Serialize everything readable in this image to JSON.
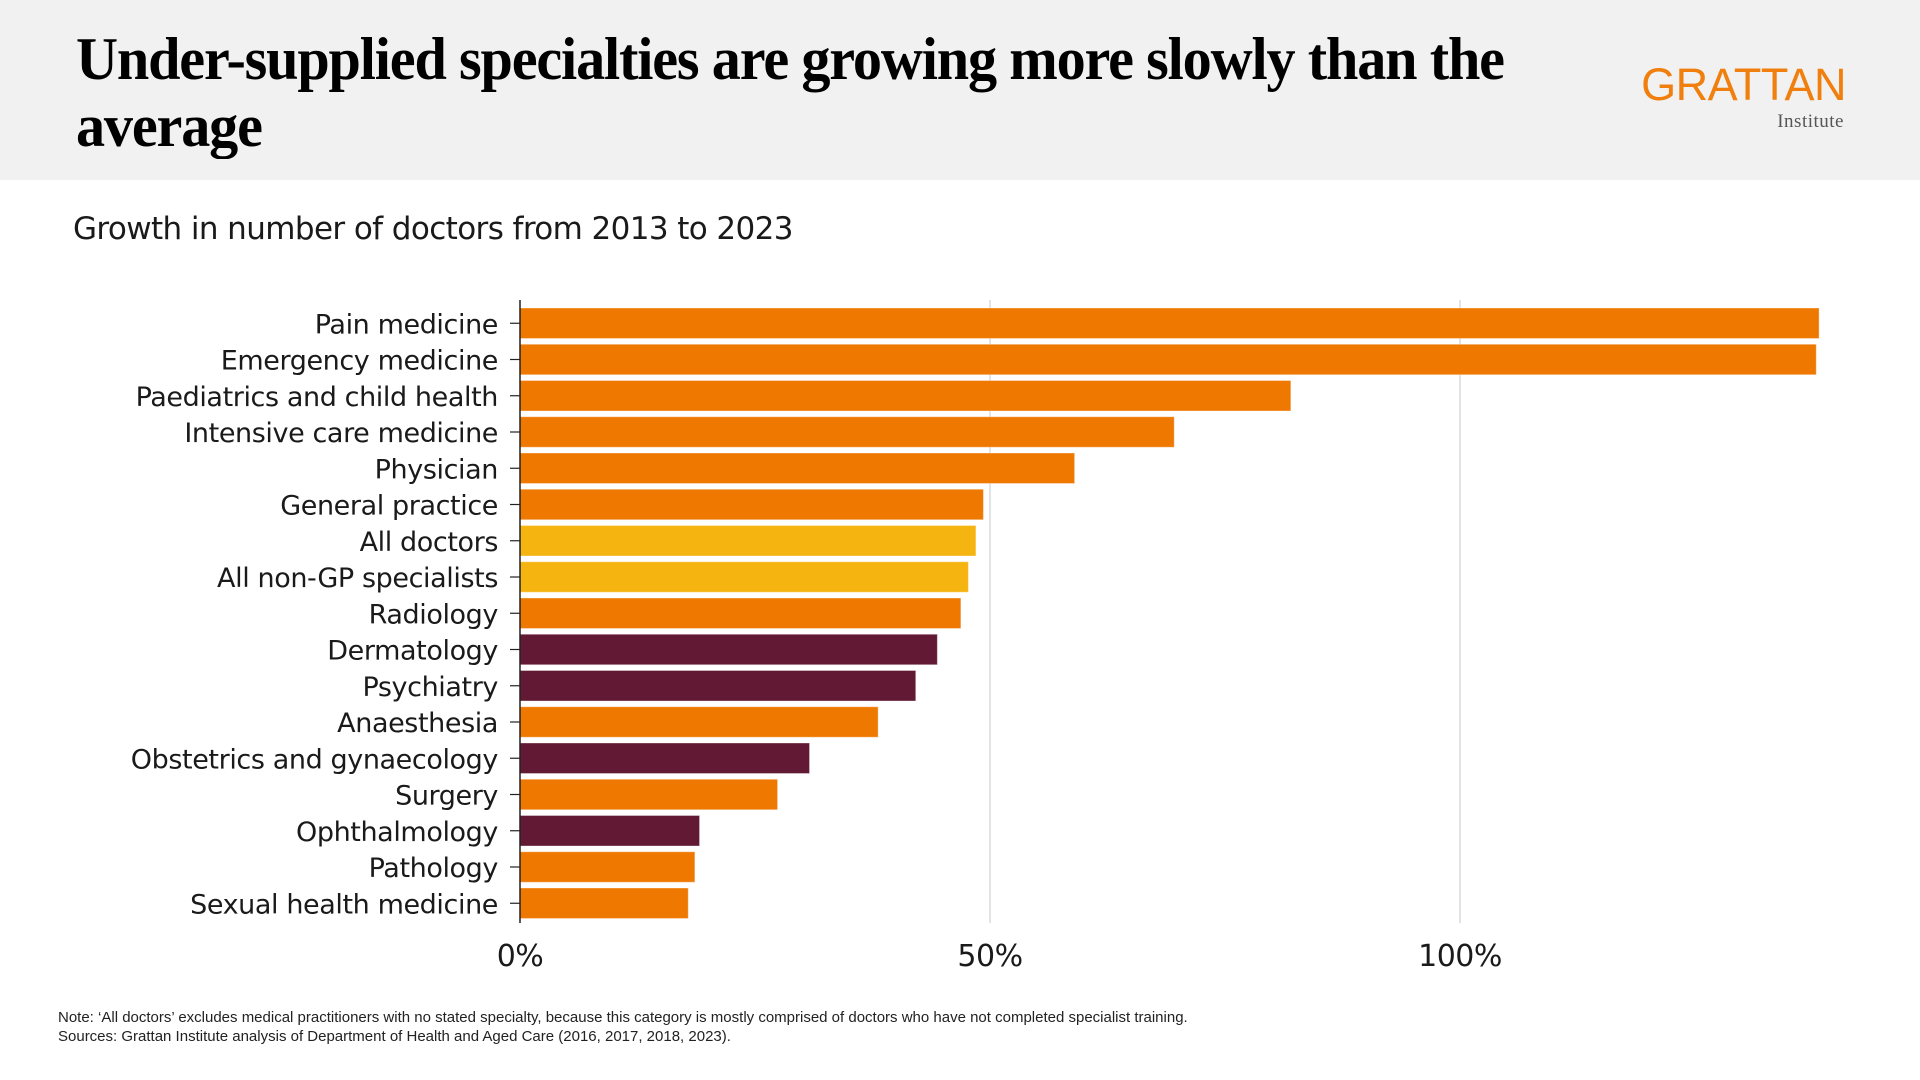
{
  "header": {
    "title": "Under-supplied specialties are growing more slowly than the average",
    "logo_main": "GRATTAN",
    "logo_sub": "Institute"
  },
  "subtitle": "Growth in number of doctors from 2013 to 2023",
  "colors": {
    "orange": "#ee7800",
    "yellow": "#f5b40f",
    "maroon": "#621934",
    "header_bg": "#f1f1f1",
    "logo": "#f07f0d",
    "grid": "#d4d4d4",
    "axis": "#222222"
  },
  "chart_data": {
    "type": "bar",
    "orientation": "horizontal",
    "title": "Growth in number of doctors from 2013 to 2023",
    "xlabel": "",
    "ylabel": "",
    "xlim": [
      0,
      1.38
    ],
    "x_ticks": [
      0,
      0.5,
      1.0
    ],
    "x_tick_labels": [
      "0%",
      "50%",
      "100%"
    ],
    "grid": "vertical",
    "legend": "none",
    "categories": [
      "Pain medicine",
      "Emergency medicine",
      "Paediatrics and child health",
      "Intensive care medicine",
      "Physician",
      "General practice",
      "All doctors",
      "All non-GP specialists",
      "Radiology",
      "Dermatology",
      "Psychiatry",
      "Anaesthesia",
      "Obstetrics and gynaecology",
      "Surgery",
      "Ophthalmology",
      "Pathology",
      "Sexual health medicine"
    ],
    "values": [
      1.382,
      1.379,
      0.82,
      0.696,
      0.59,
      0.493,
      0.485,
      0.477,
      0.469,
      0.444,
      0.421,
      0.381,
      0.308,
      0.274,
      0.191,
      0.186,
      0.179
    ],
    "bar_groups": [
      "orange",
      "orange",
      "orange",
      "orange",
      "orange",
      "orange",
      "yellow",
      "yellow",
      "orange",
      "maroon",
      "maroon",
      "orange",
      "maroon",
      "orange",
      "maroon",
      "orange",
      "orange"
    ]
  },
  "footnotes": {
    "note": "Note: ‘All doctors’ excludes medical practitioners with no stated specialty, because this category is mostly comprised of doctors who have not completed specialist training.",
    "sources": "Sources: Grattan Institute analysis of Department of Health and Aged Care (2016, 2017, 2018, 2023)."
  }
}
